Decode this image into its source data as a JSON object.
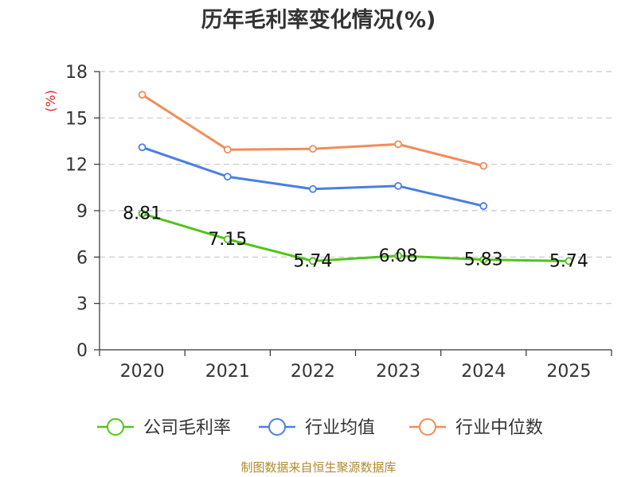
{
  "chart_data": {
    "type": "line",
    "title": "历年毛利率变化情况(%)",
    "ylabel": "(%)",
    "xlabel": "",
    "categories": [
      "2020",
      "2021",
      "2022",
      "2023",
      "2024",
      "2025"
    ],
    "ylim": [
      0,
      18
    ],
    "yticks": [
      0,
      3,
      6,
      9,
      12,
      15,
      18
    ],
    "grid": true,
    "legend_position": "bottom",
    "series": [
      {
        "name": "公司毛利率",
        "color": "#52c41a",
        "values": [
          8.81,
          7.15,
          5.74,
          6.08,
          5.83,
          5.74
        ],
        "labels": [
          "8.81",
          "7.15",
          "5.74",
          "6.08",
          "5.83",
          "5.74"
        ]
      },
      {
        "name": "行业均值",
        "color": "#4a7fe0",
        "values": [
          13.1,
          11.2,
          10.4,
          10.6,
          9.3,
          null
        ]
      },
      {
        "name": "行业中位数",
        "color": "#f28c5a",
        "values": [
          16.5,
          12.95,
          13.0,
          13.3,
          11.9,
          null
        ]
      }
    ]
  },
  "source": "制图数据来自恒生聚源数据库"
}
